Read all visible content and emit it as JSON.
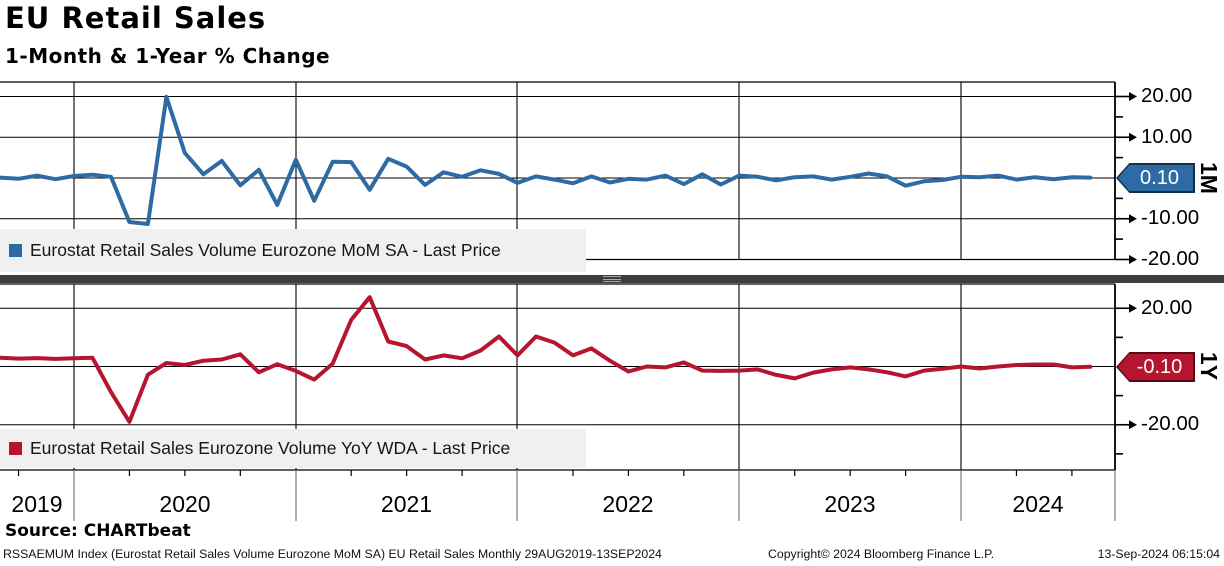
{
  "header": {
    "title": "EU Retail Sales",
    "subtitle": "1-Month & 1-Year % Change"
  },
  "source_line": "Source: CHARTbeat",
  "footer": {
    "left": "RSSAEMUM Index (Eurostat Retail Sales Volume Eurozone MoM SA) EU Retail Sales  Monthly 29AUG2019-13SEP2024",
    "center": "Copyright© 2024 Bloomberg Finance L.P.",
    "right": "13-Sep-2024 06:15:04"
  },
  "x_axis": {
    "year_labels": [
      "2019",
      "2020",
      "2021",
      "2022",
      "2023",
      "2024"
    ]
  },
  "chart_data": [
    {
      "type": "line",
      "panel": "top",
      "axis_label": "1M",
      "legend": "Eurostat Retail Sales Volume Eurozone MoM SA - Last Price",
      "legend_marker": "blue-square",
      "color": "#2e6ba4",
      "badge_color": "#2e6ba4",
      "last_price_label": "0.10",
      "last_price": 0.1,
      "frequency": "monthly",
      "x_start": "2019-09",
      "x_end": "2024-08",
      "ylim": [
        -22,
        23.5
      ],
      "grid": true,
      "y_ticks": [
        {
          "label": "20.00",
          "value": 20
        },
        {
          "label": "10.00",
          "value": 10
        },
        {
          "label": "-10.00",
          "value": -10
        },
        {
          "label": "-20.00",
          "value": -20
        }
      ],
      "values": [
        0.1,
        -0.2,
        0.6,
        -0.3,
        0.5,
        0.8,
        0.3,
        -10.8,
        -11.3,
        19.9,
        6.1,
        0.9,
        4.2,
        -1.8,
        2.0,
        -6.6,
        4.5,
        -5.6,
        4.0,
        3.9,
        -2.9,
        4.7,
        2.8,
        -1.7,
        1.4,
        0.3,
        1.9,
        1.0,
        -1.2,
        0.4,
        -0.4,
        -1.3,
        0.4,
        -1.1,
        -0.2,
        -0.4,
        0.6,
        -1.5,
        0.9,
        -1.6,
        0.6,
        0.3,
        -0.6,
        0.2,
        0.4,
        -0.4,
        0.3,
        1.1,
        0.4,
        -1.9,
        -0.8,
        -0.5,
        0.3,
        0.2,
        0.6,
        -0.4,
        0.2,
        -0.3,
        0.2,
        0.1
      ]
    },
    {
      "type": "line",
      "panel": "bottom",
      "axis_label": "1Y",
      "legend": "Eurostat Retail Sales Eurozone Volume YoY WDA - Last Price",
      "legend_marker": "red-square",
      "color": "#b5152e",
      "badge_color": "#b5152e",
      "last_price_label": "-0.10",
      "last_price": -0.1,
      "frequency": "monthly",
      "x_start": "2019-09",
      "x_end": "2024-08",
      "ylim": [
        -35.5,
        28.3
      ],
      "grid": true,
      "y_ticks": [
        {
          "label": "20.00",
          "value": 20
        },
        {
          "label": "-20.00",
          "value": -20
        }
      ],
      "values": [
        3.0,
        2.7,
        2.9,
        2.6,
        2.8,
        3.0,
        -8.8,
        -19.0,
        -2.8,
        1.2,
        0.5,
        2.0,
        2.4,
        4.2,
        -2.0,
        0.8,
        -1.5,
        -4.5,
        1.0,
        16.0,
        23.8,
        8.6,
        7.0,
        2.4,
        3.8,
        2.8,
        5.5,
        10.3,
        3.8,
        10.3,
        8.2,
        3.8,
        6.2,
        2.0,
        -1.7,
        0.0,
        -0.3,
        1.4,
        -1.4,
        -1.5,
        -1.4,
        -1.0,
        -2.9,
        -4.1,
        -2.1,
        -1.0,
        -0.3,
        -1.0,
        -2.0,
        -3.4,
        -1.4,
        -0.8,
        0.0,
        -0.7,
        0.0,
        0.5,
        0.7,
        0.7,
        -0.3,
        -0.1
      ]
    }
  ]
}
